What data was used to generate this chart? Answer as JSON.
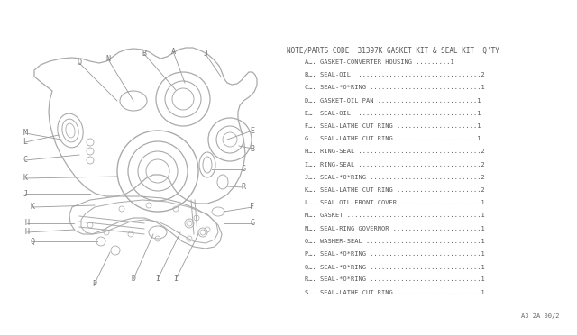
{
  "bg_color": "#ffffff",
  "title_text": "NOTE∕PARTS CODE  31397K GASKET KIT & SEAL KIT  Q'TY",
  "parts": [
    {
      "label": "A….",
      "desc": "GASKET-CONVERTER HOUSING .........",
      "qty": "1"
    },
    {
      "label": "B….",
      "desc": "SEAL-OIL  ................................",
      "qty": "2"
    },
    {
      "label": "C….",
      "desc": "SEAL-*O*RING .............................",
      "qty": "1"
    },
    {
      "label": "D….",
      "desc": "GASKET-OIL PAN ..........................",
      "qty": "1"
    },
    {
      "label": "E…",
      "desc": " SEAL-OIL  ...............................",
      "qty": "1"
    },
    {
      "label": "F….",
      "desc": "SEAL-LATHE CUT RING .....................",
      "qty": "1"
    },
    {
      "label": "G….",
      "desc": "SEAL-LATHE CUT RING .....................",
      "qty": "1"
    },
    {
      "label": "H….",
      "desc": "RING-SEAL ................................",
      "qty": "2"
    },
    {
      "label": "I….",
      "desc": "RING-SEAL ................................",
      "qty": "2"
    },
    {
      "label": "J….",
      "desc": "SEAL-*O*RING .............................",
      "qty": "2"
    },
    {
      "label": "K….",
      "desc": "SEAL-LATHE CUT RING ......................",
      "qty": "2"
    },
    {
      "label": "L….",
      "desc": "SEAL OIL FRONT COVER .....................",
      "qty": "1"
    },
    {
      "label": "M….",
      "desc": "GASKET ...................................",
      "qty": "1"
    },
    {
      "label": "N….",
      "desc": "SEAL-RING GOVERNOR .......................",
      "qty": "1"
    },
    {
      "label": "O….",
      "desc": "WASHER-SEAL ..............................",
      "qty": "1"
    },
    {
      "label": "P….",
      "desc": "SEAL-*O*RING .............................",
      "qty": "1"
    },
    {
      "label": "Q….",
      "desc": "SEAL-*O*RING .............................",
      "qty": "1"
    },
    {
      "label": "R….",
      "desc": "SEAL-*O*RING .............................",
      "qty": "1"
    },
    {
      "label": "S….",
      "desc": "SEAL-LATHE CUT RING ......................",
      "qty": "1"
    }
  ],
  "footer_text": "A3 2A 00/2",
  "text_color": "#666666",
  "line_color": "#aaaaaa",
  "label_color": "#777777"
}
